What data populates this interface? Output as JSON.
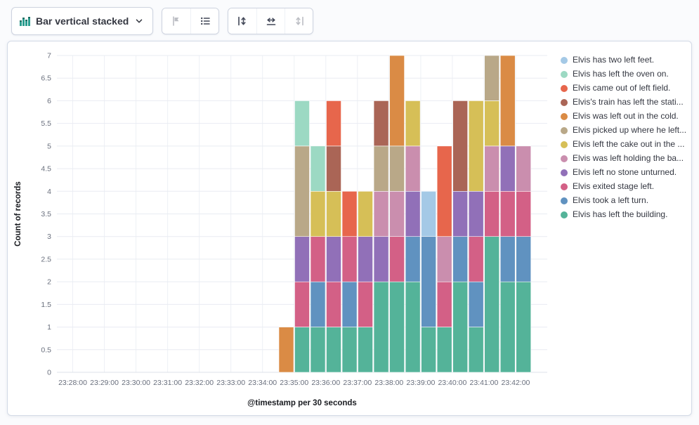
{
  "toolbar": {
    "chart_type_label": "Bar vertical stacked",
    "groups": [
      {
        "buttons": [
          {
            "icon": "filter-flag-icon",
            "disabled": true
          },
          {
            "icon": "legend-list-icon",
            "disabled": false
          }
        ]
      },
      {
        "buttons": [
          {
            "icon": "axis-left-icon",
            "disabled": false
          },
          {
            "icon": "axis-bottom-icon",
            "disabled": false
          },
          {
            "icon": "axis-right-icon",
            "disabled": true
          }
        ]
      }
    ]
  },
  "chart_data": {
    "type": "bar",
    "stacked": true,
    "title": "",
    "xlabel": "@timestamp per 30 seconds",
    "ylabel": "Count of records",
    "ylim": [
      0,
      7
    ],
    "y_tick_step": 0.5,
    "grid": true,
    "legend_position": "right",
    "x_domain": [
      "23:27:30",
      "23:43:00"
    ],
    "bucket_seconds": 30,
    "x_ticks": [
      "23:28:00",
      "23:29:00",
      "23:30:00",
      "23:31:00",
      "23:32:00",
      "23:33:00",
      "23:34:00",
      "23:35:00",
      "23:36:00",
      "23:37:00",
      "23:38:00",
      "23:39:00",
      "23:40:00",
      "23:41:00",
      "23:42:00"
    ],
    "categories": [
      "23:34:30",
      "23:35:00",
      "23:35:30",
      "23:36:00",
      "23:36:30",
      "23:37:00",
      "23:37:30",
      "23:38:00",
      "23:38:30",
      "23:39:00",
      "23:39:30",
      "23:40:00",
      "23:40:30",
      "23:41:00",
      "23:41:30",
      "23:42:00"
    ],
    "series": [
      {
        "name": "Elvis has left the building.",
        "color": "#54B399",
        "values": [
          0,
          1,
          1,
          1,
          1,
          1,
          2,
          2,
          2,
          1,
          1,
          2,
          1,
          3,
          2,
          2
        ]
      },
      {
        "name": "Elvis took a left turn.",
        "color": "#6092C0",
        "values": [
          0,
          0,
          1,
          0,
          1,
          0,
          0,
          0,
          1,
          2,
          0,
          1,
          1,
          0,
          1,
          1
        ]
      },
      {
        "name": "Elvis exited stage left.",
        "color": "#D36086",
        "values": [
          0,
          1,
          1,
          1,
          1,
          1,
          0,
          1,
          0,
          0,
          1,
          0,
          1,
          1,
          1,
          1
        ]
      },
      {
        "name": "Elvis left no stone unturned.",
        "color": "#9170B8",
        "values": [
          0,
          1,
          0,
          1,
          0,
          1,
          1,
          0,
          1,
          0,
          0,
          1,
          1,
          0,
          1,
          0
        ]
      },
      {
        "name": "Elvis was left holding the ba...",
        "color": "#CA8EAE",
        "values": [
          0,
          0,
          0,
          0,
          0,
          0,
          1,
          1,
          1,
          0,
          1,
          0,
          0,
          1,
          0,
          1
        ]
      },
      {
        "name": "Elvis left the cake out in the ...",
        "color": "#D6BF57",
        "values": [
          0,
          0,
          1,
          1,
          0,
          1,
          0,
          0,
          1,
          0,
          0,
          0,
          2,
          1,
          0,
          0
        ]
      },
      {
        "name": "Elvis picked up where he left...",
        "color": "#B9A888",
        "values": [
          0,
          2,
          0,
          0,
          0,
          0,
          1,
          1,
          0,
          0,
          0,
          0,
          0,
          1,
          0,
          0
        ]
      },
      {
        "name": "Elvis was left out in the cold.",
        "color": "#DA8B45",
        "values": [
          1,
          0,
          0,
          0,
          0,
          0,
          0,
          2,
          0,
          0,
          0,
          0,
          0,
          0,
          2,
          0
        ]
      },
      {
        "name": "Elvis's train has left the stati...",
        "color": "#AA6556",
        "values": [
          0,
          0,
          0,
          1,
          0,
          0,
          1,
          0,
          0,
          0,
          0,
          2,
          0,
          0,
          0,
          0
        ]
      },
      {
        "name": "Elvis came out of left field.",
        "color": "#E7664C",
        "values": [
          0,
          0,
          0,
          1,
          1,
          0,
          0,
          0,
          0,
          0,
          2,
          0,
          0,
          0,
          0,
          0
        ]
      },
      {
        "name": "Elvis has left the oven on.",
        "color": "#9CD9C3",
        "values": [
          0,
          1,
          1,
          0,
          0,
          0,
          0,
          0,
          0,
          0,
          0,
          0,
          0,
          0,
          0,
          0
        ]
      },
      {
        "name": "Elvis has two left feet.",
        "color": "#A4C9E6",
        "values": [
          0,
          0,
          0,
          0,
          0,
          0,
          0,
          0,
          0,
          1,
          0,
          0,
          0,
          0,
          0,
          0
        ]
      }
    ]
  }
}
